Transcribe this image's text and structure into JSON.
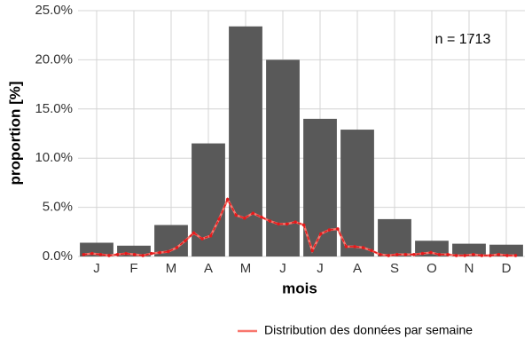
{
  "chart_data": {
    "type": "bar",
    "categories": [
      "J",
      "F",
      "M",
      "A",
      "M",
      "J",
      "J",
      "A",
      "S",
      "O",
      "N",
      "D"
    ],
    "values": [
      1.4,
      1.1,
      3.2,
      11.5,
      23.4,
      20.0,
      14.0,
      12.9,
      3.8,
      1.6,
      1.3,
      1.2
    ],
    "color": "#595959",
    "line": {
      "name": "Distribution des données par semaine",
      "color": "#f8766d",
      "dash_color": "#e41a1c",
      "values": [
        0.2,
        0.3,
        0.2,
        0.1,
        0.2,
        0.3,
        0.2,
        0.1,
        0.3,
        0.4,
        0.5,
        0.9,
        1.6,
        2.4,
        1.8,
        2.1,
        3.8,
        5.8,
        4.2,
        3.9,
        4.4,
        4.0,
        3.6,
        3.3,
        3.3,
        3.5,
        3.2,
        0.6,
        2.3,
        2.7,
        2.8,
        1.0,
        1.0,
        0.9,
        0.6,
        0.2,
        0.1,
        0.2,
        0.2,
        0.2,
        0.3,
        0.4,
        0.2,
        0.2,
        0.1,
        0.1,
        0.2,
        0.1,
        0.1,
        0.2,
        0.1,
        0.1
      ]
    },
    "xlabel": "mois",
    "ylabel": "proportion [%]",
    "annotation": "n = 1713",
    "ylim": [
      0,
      25
    ],
    "yticks": [
      {
        "value": 0,
        "label": "0.0%"
      },
      {
        "value": 5,
        "label": "5.0%"
      },
      {
        "value": 10,
        "label": "10.0%"
      },
      {
        "value": 15,
        "label": "15.0%"
      },
      {
        "value": 20,
        "label": "20.0%"
      },
      {
        "value": 25,
        "label": "25.0%"
      }
    ],
    "grid": true,
    "legend": "bottom-right"
  }
}
